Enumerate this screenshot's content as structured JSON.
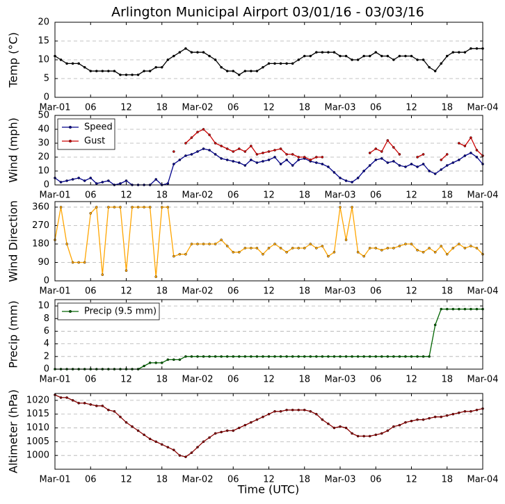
{
  "chart_data": [
    {
      "type": "line",
      "title": "Arlington Municipal Airport 03/01/16 - 03/03/16",
      "ylabel": "Temp (°C)",
      "x": [
        0,
        1,
        2,
        3,
        4,
        5,
        6,
        7,
        8,
        9,
        10,
        11,
        12,
        13,
        14,
        15,
        16,
        17,
        18,
        19,
        20,
        21,
        22,
        23,
        24,
        25,
        26,
        27,
        28,
        29,
        30,
        31,
        32,
        33,
        34,
        35,
        36,
        37,
        38,
        39,
        40,
        41,
        42,
        43,
        44,
        45,
        46,
        47,
        48,
        49,
        50,
        51,
        52,
        53,
        54,
        55,
        56,
        57,
        58,
        59,
        60,
        61,
        62,
        63,
        64,
        65,
        66,
        67,
        68,
        69,
        70,
        71,
        72
      ],
      "values": [
        11,
        10,
        9,
        9,
        9,
        8,
        7,
        7,
        7,
        7,
        7,
        6,
        6,
        6,
        6,
        7,
        7,
        8,
        8,
        10,
        11,
        12,
        13,
        12,
        12,
        12,
        11,
        10,
        8,
        7,
        7,
        6,
        7,
        7,
        7,
        8,
        9,
        9,
        9,
        9,
        9,
        10,
        11,
        11,
        12,
        12,
        12,
        12,
        11,
        11,
        10,
        10,
        11,
        11,
        12,
        11,
        11,
        10,
        11,
        11,
        11,
        10,
        10,
        8,
        7,
        9,
        11,
        12,
        12,
        12,
        13,
        13,
        13
      ],
      "color": "#000000",
      "xlim": [
        0,
        72
      ],
      "ylim": [
        0,
        20
      ],
      "yticks": [
        0,
        5,
        10,
        15,
        20
      ],
      "xticks": [
        {
          "value": 0,
          "label": "Mar-01"
        },
        {
          "value": 6,
          "label": "06"
        },
        {
          "value": 12,
          "label": "12"
        },
        {
          "value": 18,
          "label": "18"
        },
        {
          "value": 24,
          "label": "Mar-02"
        },
        {
          "value": 30,
          "label": "06"
        },
        {
          "value": 36,
          "label": "12"
        },
        {
          "value": 42,
          "label": "18"
        },
        {
          "value": 48,
          "label": "Mar-03"
        },
        {
          "value": 54,
          "label": "06"
        },
        {
          "value": 60,
          "label": "12"
        },
        {
          "value": 66,
          "label": "18"
        },
        {
          "value": 72,
          "label": "Mar-04"
        }
      ],
      "grid": true
    },
    {
      "type": "line",
      "ylabel": "Wind (mph)",
      "legend": "upper left",
      "x": [
        0,
        1,
        2,
        3,
        4,
        5,
        6,
        7,
        8,
        9,
        10,
        11,
        12,
        13,
        14,
        15,
        16,
        17,
        18,
        19,
        20,
        21,
        22,
        23,
        24,
        25,
        26,
        27,
        28,
        29,
        30,
        31,
        32,
        33,
        34,
        35,
        36,
        37,
        38,
        39,
        40,
        41,
        42,
        43,
        44,
        45,
        46,
        47,
        48,
        49,
        50,
        51,
        52,
        53,
        54,
        55,
        56,
        57,
        58,
        59,
        60,
        61,
        62,
        63,
        64,
        65,
        66,
        67,
        68,
        69,
        70,
        71,
        72
      ],
      "series": [
        {
          "name": "Speed",
          "color": "#00008b",
          "values": [
            5,
            2,
            3,
            4,
            5,
            3,
            5,
            1,
            2,
            3,
            0,
            1,
            3,
            0,
            0,
            0,
            0,
            4,
            0,
            1,
            15,
            18,
            21,
            22,
            24,
            26,
            25,
            22,
            19,
            18,
            17,
            16,
            14,
            18,
            16,
            17,
            18,
            20,
            15,
            18,
            14,
            18,
            19,
            17,
            16,
            15,
            13,
            9,
            5,
            3,
            2,
            5,
            10,
            14,
            18,
            19,
            16,
            17,
            14,
            13,
            15,
            13,
            15,
            10,
            8,
            11,
            14,
            16,
            18,
            21,
            23,
            20,
            15
          ]
        },
        {
          "name": "Gust",
          "color": "#cc0000",
          "values": [
            null,
            null,
            null,
            null,
            null,
            null,
            null,
            null,
            null,
            null,
            null,
            null,
            null,
            null,
            null,
            null,
            null,
            null,
            null,
            null,
            24,
            null,
            30,
            34,
            38,
            40,
            36,
            30,
            28,
            26,
            24,
            26,
            24,
            28,
            22,
            23,
            24,
            25,
            26,
            22,
            22,
            20,
            20,
            18,
            20,
            20,
            null,
            null,
            null,
            null,
            null,
            null,
            null,
            23,
            26,
            24,
            32,
            27,
            22,
            null,
            null,
            20,
            22,
            null,
            null,
            18,
            22,
            null,
            30,
            28,
            34,
            25,
            21
          ]
        }
      ],
      "xlim": [
        0,
        72
      ],
      "ylim": [
        0,
        50
      ],
      "yticks": [
        0,
        10,
        20,
        30,
        40,
        50
      ],
      "xticks": [
        {
          "value": 0,
          "label": "Mar-01"
        },
        {
          "value": 6,
          "label": "06"
        },
        {
          "value": 12,
          "label": "12"
        },
        {
          "value": 18,
          "label": "18"
        },
        {
          "value": 24,
          "label": "Mar-02"
        },
        {
          "value": 30,
          "label": "06"
        },
        {
          "value": 36,
          "label": "12"
        },
        {
          "value": 42,
          "label": "18"
        },
        {
          "value": 48,
          "label": "Mar-03"
        },
        {
          "value": 54,
          "label": "06"
        },
        {
          "value": 60,
          "label": "12"
        },
        {
          "value": 66,
          "label": "18"
        },
        {
          "value": 72,
          "label": "Mar-04"
        }
      ],
      "grid": true
    },
    {
      "type": "line",
      "ylabel": "Wind Direction",
      "x": [
        0,
        1,
        2,
        3,
        4,
        5,
        6,
        7,
        8,
        9,
        10,
        11,
        12,
        13,
        14,
        15,
        16,
        17,
        18,
        19,
        20,
        21,
        22,
        23,
        24,
        25,
        26,
        27,
        28,
        29,
        30,
        31,
        32,
        33,
        34,
        35,
        36,
        37,
        38,
        39,
        40,
        41,
        42,
        43,
        44,
        45,
        46,
        47,
        48,
        49,
        50,
        51,
        52,
        53,
        54,
        55,
        56,
        57,
        58,
        59,
        60,
        61,
        62,
        63,
        64,
        65,
        66,
        67,
        68,
        69,
        70,
        71,
        72
      ],
      "values": [
        200,
        360,
        180,
        90,
        90,
        90,
        330,
        360,
        30,
        360,
        360,
        360,
        50,
        360,
        360,
        360,
        360,
        20,
        360,
        360,
        120,
        130,
        130,
        180,
        180,
        180,
        180,
        180,
        200,
        170,
        140,
        140,
        160,
        160,
        160,
        130,
        160,
        180,
        160,
        140,
        160,
        160,
        160,
        180,
        160,
        170,
        120,
        140,
        360,
        200,
        360,
        140,
        120,
        160,
        160,
        150,
        160,
        160,
        170,
        180,
        180,
        150,
        140,
        160,
        140,
        170,
        130,
        160,
        180,
        160,
        170,
        160,
        130
      ],
      "color": "#ffa500",
      "xlim": [
        0,
        72
      ],
      "ylim": [
        0,
        387
      ],
      "yticks": [
        0,
        90,
        180,
        270,
        360
      ],
      "xticks": [
        {
          "value": 0,
          "label": "Mar-01"
        },
        {
          "value": 6,
          "label": "06"
        },
        {
          "value": 12,
          "label": "12"
        },
        {
          "value": 18,
          "label": "18"
        },
        {
          "value": 24,
          "label": "Mar-02"
        },
        {
          "value": 30,
          "label": "06"
        },
        {
          "value": 36,
          "label": "12"
        },
        {
          "value": 42,
          "label": "18"
        },
        {
          "value": 48,
          "label": "Mar-03"
        },
        {
          "value": 54,
          "label": "06"
        },
        {
          "value": 60,
          "label": "12"
        },
        {
          "value": 66,
          "label": "18"
        },
        {
          "value": 72,
          "label": "Mar-04"
        }
      ],
      "grid": true
    },
    {
      "type": "line",
      "ylabel": "Precip (mm)",
      "legend": "upper left",
      "x": [
        0,
        1,
        2,
        3,
        4,
        5,
        6,
        7,
        8,
        9,
        10,
        11,
        12,
        13,
        14,
        15,
        16,
        17,
        18,
        19,
        20,
        21,
        22,
        23,
        24,
        25,
        26,
        27,
        28,
        29,
        30,
        31,
        32,
        33,
        34,
        35,
        36,
        37,
        38,
        39,
        40,
        41,
        42,
        43,
        44,
        45,
        46,
        47,
        48,
        49,
        50,
        51,
        52,
        53,
        54,
        55,
        56,
        57,
        58,
        59,
        60,
        61,
        62,
        63,
        64,
        65,
        66,
        67,
        68,
        69,
        70,
        71,
        72
      ],
      "series": [
        {
          "name": "Precip (9.5 mm)",
          "color": "#006400",
          "values": [
            0,
            0,
            0,
            0,
            0,
            0,
            0,
            0,
            0,
            0,
            0,
            0,
            0,
            0,
            0,
            0.5,
            1,
            1,
            1,
            1.5,
            1.5,
            1.5,
            2,
            2,
            2,
            2,
            2,
            2,
            2,
            2,
            2,
            2,
            2,
            2,
            2,
            2,
            2,
            2,
            2,
            2,
            2,
            2,
            2,
            2,
            2,
            2,
            2,
            2,
            2,
            2,
            2,
            2,
            2,
            2,
            2,
            2,
            2,
            2,
            2,
            2,
            2,
            2,
            2,
            2,
            7,
            9.5,
            9.5,
            9.5,
            9.5,
            9.5,
            9.5,
            9.5,
            9.5
          ]
        }
      ],
      "xlim": [
        0,
        72
      ],
      "ylim": [
        0,
        11
      ],
      "yticks": [
        0,
        2,
        4,
        6,
        8,
        10
      ],
      "xticks": [
        {
          "value": 0,
          "label": "Mar-01"
        },
        {
          "value": 6,
          "label": "06"
        },
        {
          "value": 12,
          "label": "12"
        },
        {
          "value": 18,
          "label": "18"
        },
        {
          "value": 24,
          "label": "Mar-02"
        },
        {
          "value": 30,
          "label": "06"
        },
        {
          "value": 36,
          "label": "12"
        },
        {
          "value": 42,
          "label": "18"
        },
        {
          "value": 48,
          "label": "Mar-03"
        },
        {
          "value": 54,
          "label": "06"
        },
        {
          "value": 60,
          "label": "12"
        },
        {
          "value": 66,
          "label": "18"
        },
        {
          "value": 72,
          "label": "Mar-04"
        }
      ],
      "grid": true
    },
    {
      "type": "line",
      "ylabel": "Altimeter (hPa)",
      "xlabel": "Time (UTC)",
      "x": [
        0,
        1,
        2,
        3,
        4,
        5,
        6,
        7,
        8,
        9,
        10,
        11,
        12,
        13,
        14,
        15,
        16,
        17,
        18,
        19,
        20,
        21,
        22,
        23,
        24,
        25,
        26,
        27,
        28,
        29,
        30,
        31,
        32,
        33,
        34,
        35,
        36,
        37,
        38,
        39,
        40,
        41,
        42,
        43,
        44,
        45,
        46,
        47,
        48,
        49,
        50,
        51,
        52,
        53,
        54,
        55,
        56,
        57,
        58,
        59,
        60,
        61,
        62,
        63,
        64,
        65,
        66,
        67,
        68,
        69,
        70,
        71,
        72
      ],
      "values": [
        1022,
        1021,
        1021,
        1020,
        1019,
        1019,
        1018.5,
        1018,
        1018,
        1016.5,
        1016,
        1014,
        1012,
        1010.5,
        1009,
        1007.5,
        1006,
        1005,
        1004,
        1003,
        1002,
        1000,
        999.5,
        1001,
        1003,
        1005,
        1006.5,
        1008,
        1008.5,
        1009,
        1009,
        1010,
        1011,
        1012,
        1013,
        1014,
        1015,
        1016,
        1016,
        1016.5,
        1016.5,
        1016.5,
        1016.5,
        1016,
        1015,
        1013,
        1011.5,
        1010,
        1010.5,
        1010,
        1008,
        1007,
        1007,
        1007,
        1007.5,
        1008,
        1009,
        1010.5,
        1011,
        1012,
        1012.5,
        1013,
        1013,
        1013.5,
        1014,
        1014,
        1014.5,
        1015,
        1015.5,
        1016,
        1016,
        1016.5,
        1017
      ],
      "color": "#8b0000",
      "xlim": [
        0,
        72
      ],
      "ylim": [
        995,
        1022.5
      ],
      "yticks": [
        1000,
        1005,
        1010,
        1015,
        1020
      ],
      "xticks": [
        {
          "value": 0,
          "label": "Mar-01"
        },
        {
          "value": 6,
          "label": "06"
        },
        {
          "value": 12,
          "label": "12"
        },
        {
          "value": 18,
          "label": "18"
        },
        {
          "value": 24,
          "label": "Mar-02"
        },
        {
          "value": 30,
          "label": "06"
        },
        {
          "value": 36,
          "label": "12"
        },
        {
          "value": 42,
          "label": "18"
        },
        {
          "value": 48,
          "label": "Mar-03"
        },
        {
          "value": 54,
          "label": "06"
        },
        {
          "value": 60,
          "label": "12"
        },
        {
          "value": 66,
          "label": "18"
        },
        {
          "value": 72,
          "label": "Mar-04"
        }
      ],
      "grid": true
    }
  ]
}
